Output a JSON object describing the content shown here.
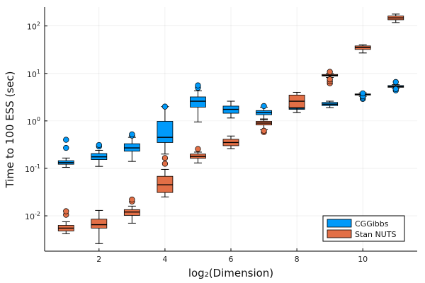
{
  "chart_data": {
    "type": "box",
    "xlabel": "log₂(Dimension)",
    "ylabel": "Time to 100 ESS (sec)",
    "xlim": [
      0.35,
      11.65
    ],
    "ylim": [
      0.0018,
      250
    ],
    "yscale": "log",
    "grid": true,
    "legend_position": "bottom-right",
    "x_ticks": [
      2,
      4,
      6,
      8,
      10
    ],
    "x_tick_labels": [
      "2",
      "4",
      "6",
      "8",
      "10"
    ],
    "y_ticks": [
      0.01,
      0.1,
      1,
      10,
      100
    ],
    "y_tick_labels": [
      {
        "base": "10",
        "exp": "-2"
      },
      {
        "base": "10",
        "exp": "-1"
      },
      {
        "base": "10",
        "exp": "0"
      },
      {
        "base": "10",
        "exp": "1"
      },
      {
        "base": "10",
        "exp": "2"
      }
    ],
    "series": [
      {
        "name": "CGGibbs",
        "color": "#009AFA",
        "boxes": [
          {
            "x": 1,
            "min": 0.105,
            "q1": 0.122,
            "median": 0.132,
            "q3": 0.145,
            "max": 0.165,
            "outliers": [
              0.27,
              0.4
            ]
          },
          {
            "x": 2,
            "min": 0.11,
            "q1": 0.153,
            "median": 0.175,
            "q3": 0.205,
            "max": 0.24,
            "outliers": [
              0.29,
              0.31
            ]
          },
          {
            "x": 3,
            "min": 0.14,
            "q1": 0.23,
            "median": 0.27,
            "q3": 0.33,
            "max": 0.45,
            "outliers": [
              0.49,
              0.52
            ]
          },
          {
            "x": 4,
            "min": 0.2,
            "q1": 0.35,
            "median": 0.45,
            "q3": 0.98,
            "max": 2.0,
            "outliers": [
              2.0
            ]
          },
          {
            "x": 5,
            "min": 0.95,
            "q1": 1.95,
            "median": 2.6,
            "q3": 3.2,
            "max": 4.3,
            "outliers": [
              5.0,
              5.6
            ]
          },
          {
            "x": 6,
            "min": 1.15,
            "q1": 1.45,
            "median": 1.75,
            "q3": 2.05,
            "max": 2.6,
            "outliers": []
          },
          {
            "x": 7,
            "min": 1.05,
            "q1": 1.35,
            "median": 1.5,
            "q3": 1.65,
            "max": 1.95,
            "outliers": [
              2.05
            ]
          },
          {
            "x": 8,
            "min": 1.5,
            "q1": 1.75,
            "median": 1.85,
            "q3": 2.0,
            "max": 2.2,
            "outliers": []
          },
          {
            "x": 9,
            "min": 1.9,
            "q1": 2.1,
            "median": 2.25,
            "q3": 2.45,
            "max": 2.6,
            "outliers": []
          },
          {
            "x": 10,
            "min": 3.3,
            "q1": 3.5,
            "median": 3.6,
            "q3": 3.7,
            "max": 3.9,
            "outliers": [
              2.9,
              3.1,
              3.3,
              3.8
            ]
          },
          {
            "x": 11,
            "min": 4.8,
            "q1": 5.1,
            "median": 5.3,
            "q3": 5.55,
            "max": 5.8,
            "outliers": [
              4.4,
              4.7,
              6.6
            ]
          }
        ]
      },
      {
        "name": "Stan NUTS",
        "color": "#E26F46",
        "boxes": [
          {
            "x": 1,
            "min": 0.0042,
            "q1": 0.0048,
            "median": 0.0055,
            "q3": 0.0063,
            "max": 0.0075,
            "outliers": [
              0.0105,
              0.0125
            ]
          },
          {
            "x": 2,
            "min": 0.0026,
            "q1": 0.0055,
            "median": 0.0065,
            "q3": 0.0085,
            "max": 0.013,
            "outliers": []
          },
          {
            "x": 3,
            "min": 0.007,
            "q1": 0.0102,
            "median": 0.012,
            "q3": 0.0135,
            "max": 0.016,
            "outliers": [
              0.02,
              0.022
            ]
          },
          {
            "x": 4,
            "min": 0.025,
            "q1": 0.031,
            "median": 0.045,
            "q3": 0.068,
            "max": 0.095,
            "outliers": [
              0.125,
              0.165
            ]
          },
          {
            "x": 5,
            "min": 0.13,
            "q1": 0.163,
            "median": 0.178,
            "q3": 0.2,
            "max": 0.22,
            "outliers": [
              0.255
            ]
          },
          {
            "x": 6,
            "min": 0.26,
            "q1": 0.3,
            "median": 0.35,
            "q3": 0.41,
            "max": 0.48,
            "outliers": []
          },
          {
            "x": 7,
            "min": 0.65,
            "q1": 0.82,
            "median": 0.9,
            "q3": 0.98,
            "max": 1.1,
            "outliers": [
              0.58,
              0.62
            ]
          },
          {
            "x": 8,
            "min": 1.5,
            "q1": 1.9,
            "median": 2.6,
            "q3": 3.5,
            "max": 4.0,
            "outliers": []
          },
          {
            "x": 9,
            "min": 8.2,
            "q1": 8.8,
            "median": 9.1,
            "q3": 9.5,
            "max": 10.0,
            "outliers": [
              6.2,
              6.8,
              7.5,
              10.8
            ]
          },
          {
            "x": 10,
            "min": 27,
            "q1": 32,
            "median": 35,
            "q3": 38,
            "max": 40,
            "outliers": []
          },
          {
            "x": 11,
            "min": 118,
            "q1": 135,
            "median": 148,
            "q3": 162,
            "max": 178,
            "outliers": []
          }
        ]
      }
    ]
  }
}
